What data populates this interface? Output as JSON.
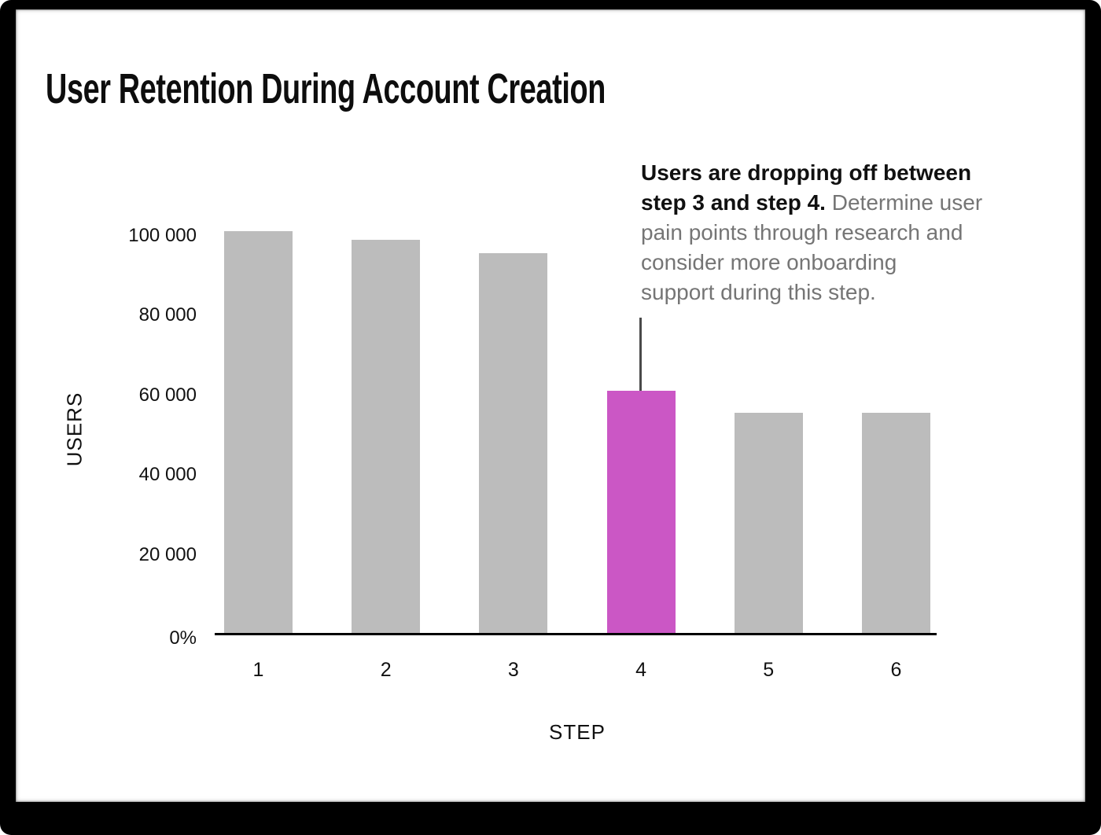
{
  "chart_data": {
    "type": "bar",
    "title": "User Retention During Account Creation",
    "xlabel": "STEP",
    "ylabel": "USERS",
    "categories": [
      "1",
      "2",
      "3",
      "4",
      "5",
      "6"
    ],
    "values": [
      101000,
      99000,
      95500,
      61000,
      55500,
      55500
    ],
    "highlight_index": 3,
    "bar_color": "#BCBCBC",
    "highlight_color": "#CB57C5",
    "axis_color": "#000000",
    "pointer_line_color": "#4A4A4A",
    "ylim": [
      0,
      104000
    ],
    "grid": false,
    "legend": false,
    "yticks": [
      {
        "value": 100000,
        "label": "100 000"
      },
      {
        "value": 80000,
        "label": "80 000"
      },
      {
        "value": 60000,
        "label": "60 000"
      },
      {
        "value": 40000,
        "label": "40 000"
      },
      {
        "value": 20000,
        "label": "20 000"
      },
      {
        "value": 0,
        "label": "0%"
      }
    ],
    "annotation_text": "Users are dropping off between step 3 and step 4. Determine user pain points through research and consider more onboarding support during this step."
  },
  "annotation": {
    "bold_color": "#101010",
    "gray_color": "#757575",
    "lines": [
      {
        "bold": "Users are dropping off between",
        "gray": ""
      },
      {
        "bold": "step 3 and step 4.",
        "gray": " Determine user"
      },
      {
        "bold": "",
        "gray": "pain points through research and"
      },
      {
        "bold": "",
        "gray": "consider more onboarding"
      },
      {
        "bold": "",
        "gray": "support during this step."
      }
    ]
  }
}
